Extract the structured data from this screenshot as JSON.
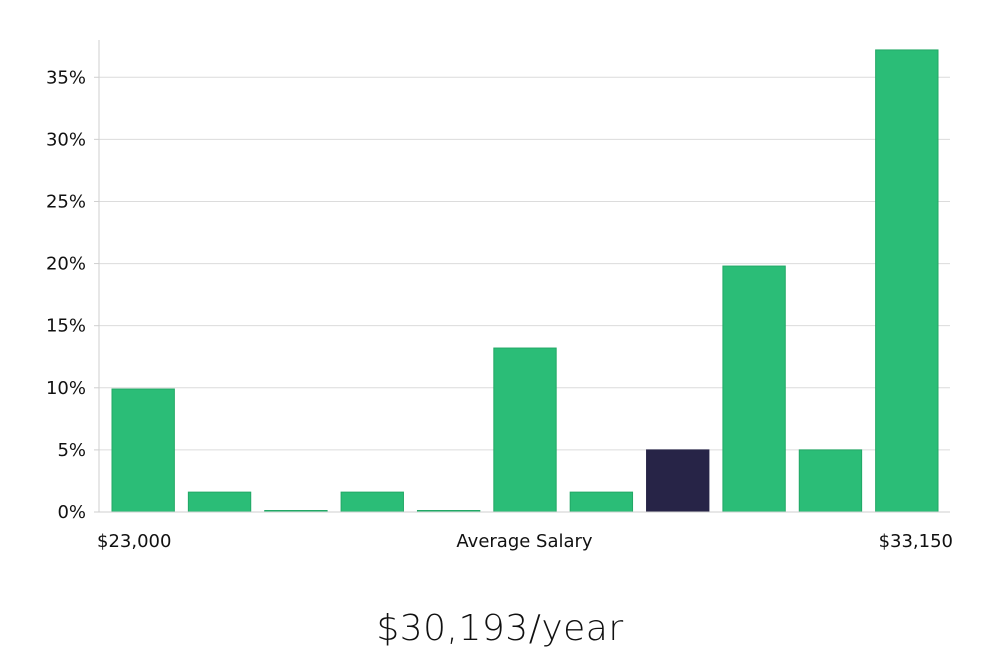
{
  "chart_data": {
    "type": "bar",
    "categories": [
      "1",
      "2",
      "3",
      "4",
      "5",
      "6",
      "7",
      "8",
      "9",
      "10",
      "11"
    ],
    "values": [
      9.9,
      1.6,
      0.05,
      1.6,
      0.05,
      13.2,
      1.6,
      5.0,
      19.8,
      5.0,
      37.2
    ],
    "highlight_index": 7,
    "ylim": [
      0,
      38
    ],
    "yticks": [
      0,
      5,
      10,
      15,
      20,
      25,
      30,
      35
    ],
    "ytick_labels": [
      "0%",
      "5%",
      "10%",
      "15%",
      "20%",
      "25%",
      "30%",
      "35%"
    ],
    "x_min_label": "$23,000",
    "xlabel": "Average Salary",
    "x_max_label": "$33,150",
    "grid": true,
    "colors": {
      "bar": "#2bbd77",
      "bar_edge": "#22a866",
      "highlight": "#272447",
      "grid": "#dcdcdc"
    }
  },
  "caption": {
    "salary": "$30,193/year"
  }
}
